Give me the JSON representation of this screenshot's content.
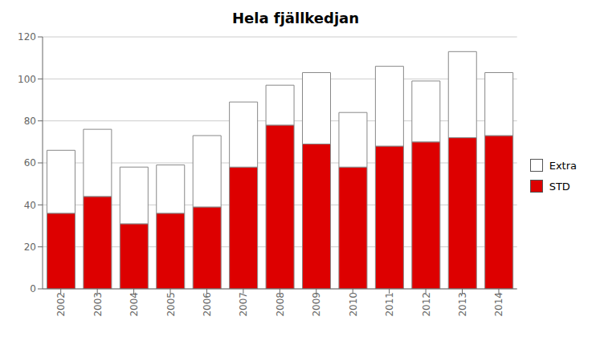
{
  "chart_data": {
    "type": "bar",
    "title": "Hela fjällkedjan",
    "categories": [
      "2002",
      "2003",
      "2004",
      "2005",
      "2006",
      "2007",
      "2008",
      "2009",
      "2010",
      "2011",
      "2012",
      "2013",
      "2014"
    ],
    "series": [
      {
        "name": "STD",
        "color": "#dd0000",
        "values": [
          36,
          44,
          31,
          36,
          39,
          58,
          78,
          69,
          58,
          68,
          70,
          72,
          73
        ]
      },
      {
        "name": "Extra",
        "color": "#ffffff",
        "values": [
          30,
          32,
          27,
          23,
          34,
          31,
          19,
          34,
          26,
          38,
          29,
          41,
          30
        ]
      }
    ],
    "stacked": true,
    "ylim": [
      0,
      120
    ],
    "yticks": [
      0,
      20,
      40,
      60,
      80,
      100,
      120
    ],
    "grid": true,
    "legend": "right"
  }
}
